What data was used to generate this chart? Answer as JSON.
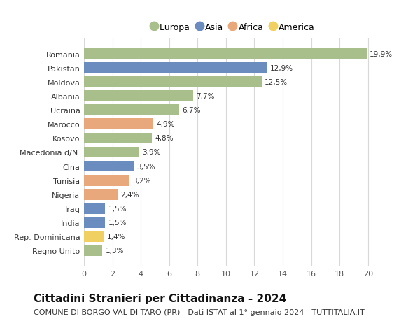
{
  "categories": [
    "Romania",
    "Pakistan",
    "Moldova",
    "Albania",
    "Ucraina",
    "Marocco",
    "Kosovo",
    "Macedonia d/N.",
    "Cina",
    "Tunisia",
    "Nigeria",
    "Iraq",
    "India",
    "Rep. Dominicana",
    "Regno Unito"
  ],
  "values": [
    19.9,
    12.9,
    12.5,
    7.7,
    6.7,
    4.9,
    4.8,
    3.9,
    3.5,
    3.2,
    2.4,
    1.5,
    1.5,
    1.4,
    1.3
  ],
  "labels": [
    "19,9%",
    "12,9%",
    "12,5%",
    "7,7%",
    "6,7%",
    "4,9%",
    "4,8%",
    "3,9%",
    "3,5%",
    "3,2%",
    "2,4%",
    "1,5%",
    "1,5%",
    "1,4%",
    "1,3%"
  ],
  "continents": [
    "Europa",
    "Asia",
    "Europa",
    "Europa",
    "Europa",
    "Africa",
    "Europa",
    "Europa",
    "Asia",
    "Africa",
    "Africa",
    "Asia",
    "Asia",
    "America",
    "Europa"
  ],
  "colors": {
    "Europa": "#a8bf8c",
    "Asia": "#6b8cbf",
    "Africa": "#e8a87c",
    "America": "#f0d060"
  },
  "title": "Cittadini Stranieri per Cittadinanza - 2024",
  "subtitle": "COMUNE DI BORGO VAL DI TARO (PR) - Dati ISTAT al 1° gennaio 2024 - TUTTITALIA.IT",
  "xlim": [
    0,
    21
  ],
  "xticks": [
    0,
    2,
    4,
    6,
    8,
    10,
    12,
    14,
    16,
    18,
    20
  ],
  "background_color": "#ffffff",
  "plot_bg_color": "#ffffff",
  "grid_color": "#d8d8d8",
  "bar_height": 0.78,
  "title_fontsize": 11,
  "subtitle_fontsize": 8.0,
  "label_fontsize": 7.5,
  "tick_fontsize": 8.0,
  "legend_fontsize": 9
}
